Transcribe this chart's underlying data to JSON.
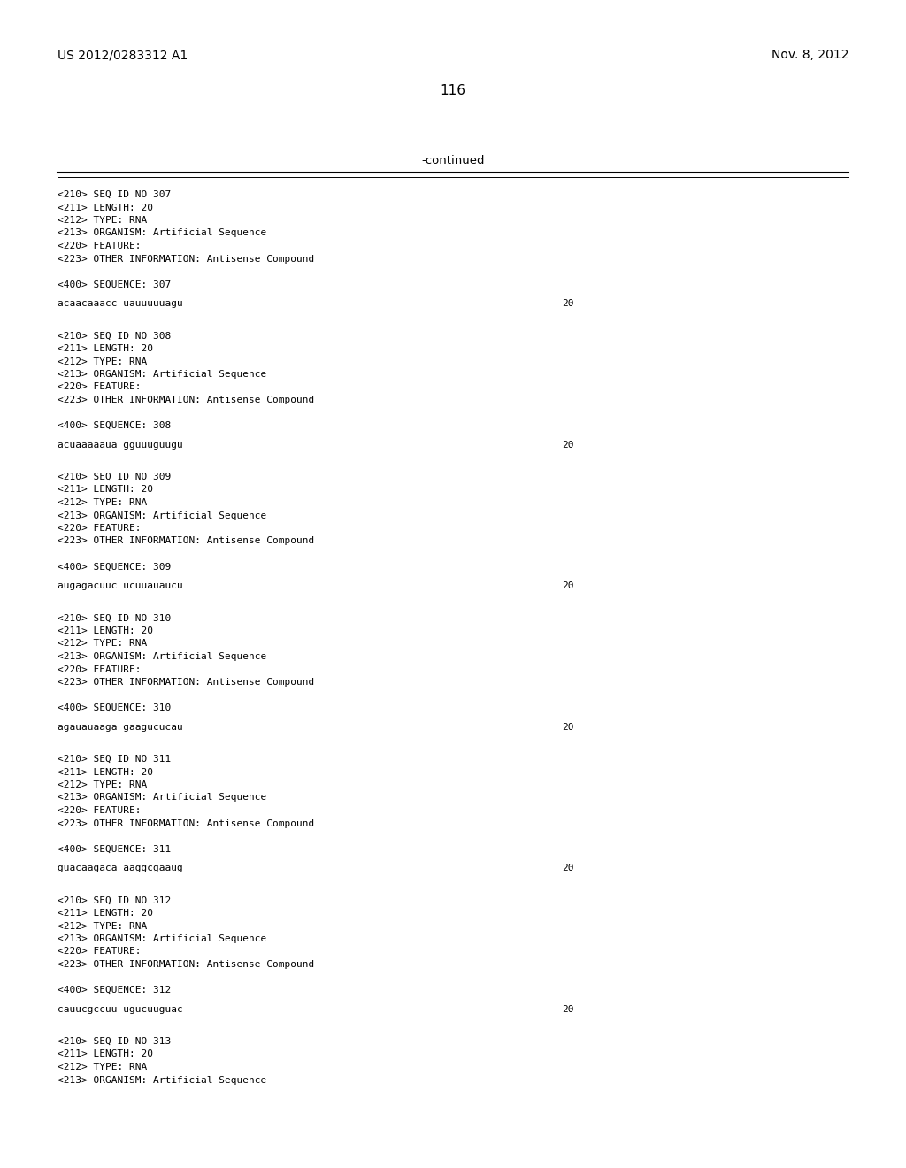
{
  "header_left": "US 2012/0283312 A1",
  "header_right": "Nov. 8, 2012",
  "page_number": "116",
  "continued_label": "-continued",
  "background_color": "#ffffff",
  "text_color": "#000000",
  "entries": [
    {
      "seq_id": "307",
      "length": "20",
      "type": "RNA",
      "organism": "Artificial Sequence",
      "feature": true,
      "other_info": "Antisense Compound",
      "sequence": "acaacaaacc uauuuuuagu",
      "seq_length_num": "20"
    },
    {
      "seq_id": "308",
      "length": "20",
      "type": "RNA",
      "organism": "Artificial Sequence",
      "feature": true,
      "other_info": "Antisense Compound",
      "sequence": "acuaaaaaua gguuuguugu",
      "seq_length_num": "20"
    },
    {
      "seq_id": "309",
      "length": "20",
      "type": "RNA",
      "organism": "Artificial Sequence",
      "feature": true,
      "other_info": "Antisense Compound",
      "sequence": "augagacuuc ucuuauaucu",
      "seq_length_num": "20"
    },
    {
      "seq_id": "310",
      "length": "20",
      "type": "RNA",
      "organism": "Artificial Sequence",
      "feature": true,
      "other_info": "Antisense Compound",
      "sequence": "agauauaaga gaagucucau",
      "seq_length_num": "20"
    },
    {
      "seq_id": "311",
      "length": "20",
      "type": "RNA",
      "organism": "Artificial Sequence",
      "feature": true,
      "other_info": "Antisense Compound",
      "sequence": "guacaagaca aaggcgaaug",
      "seq_length_num": "20"
    },
    {
      "seq_id": "312",
      "length": "20",
      "type": "RNA",
      "organism": "Artificial Sequence",
      "feature": true,
      "other_info": "Antisense Compound",
      "sequence": "cauucgccuu ugucuuguac",
      "seq_length_num": "20"
    },
    {
      "seq_id": "313",
      "length": "20",
      "type": "RNA",
      "organism": "Artificial Sequence",
      "feature": false,
      "other_info": null,
      "sequence": null,
      "seq_length_num": null
    }
  ]
}
